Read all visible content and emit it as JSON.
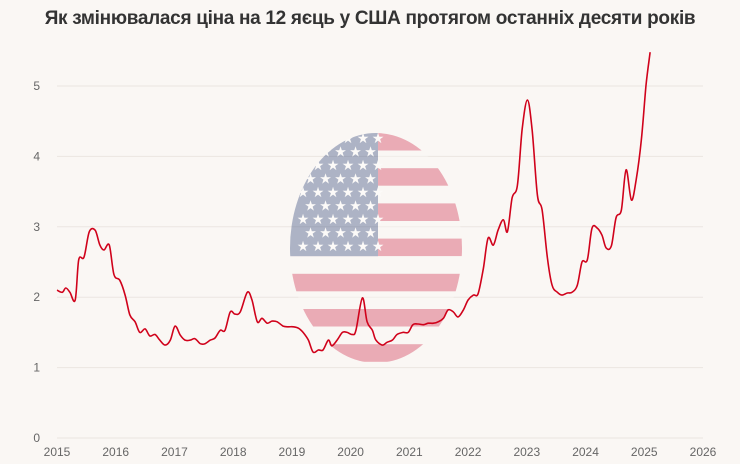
{
  "chart_data": {
    "type": "line",
    "title": "Як змінювалася ціна на 12 яєць у США протягом останніх десяти років",
    "xlabel": "",
    "ylabel": "",
    "xlim": [
      2015,
      2026
    ],
    "ylim": [
      0,
      5.5
    ],
    "x_ticks": [
      "2015",
      "2016",
      "2017",
      "2018",
      "2019",
      "2020",
      "2021",
      "2022",
      "2023",
      "2024",
      "2025",
      "2026"
    ],
    "y_ticks": [
      "0",
      "1",
      "2",
      "3",
      "4",
      "5"
    ],
    "grid": "horizontal",
    "line_color": "#d0021b",
    "background_image": "us-flag-egg",
    "points": [
      [
        2015.0,
        2.1
      ],
      [
        2015.09,
        2.07
      ],
      [
        2015.15,
        2.13
      ],
      [
        2015.22,
        2.07
      ],
      [
        2015.31,
        1.96
      ],
      [
        2015.37,
        2.53
      ],
      [
        2015.46,
        2.57
      ],
      [
        2015.55,
        2.93
      ],
      [
        2015.65,
        2.95
      ],
      [
        2015.73,
        2.74
      ],
      [
        2015.8,
        2.67
      ],
      [
        2015.89,
        2.74
      ],
      [
        2015.97,
        2.32
      ],
      [
        2016.07,
        2.24
      ],
      [
        2016.16,
        2.03
      ],
      [
        2016.24,
        1.75
      ],
      [
        2016.33,
        1.65
      ],
      [
        2016.41,
        1.5
      ],
      [
        2016.5,
        1.55
      ],
      [
        2016.58,
        1.45
      ],
      [
        2016.67,
        1.47
      ],
      [
        2016.75,
        1.39
      ],
      [
        2016.84,
        1.32
      ],
      [
        2016.93,
        1.39
      ],
      [
        2017.01,
        1.59
      ],
      [
        2017.1,
        1.46
      ],
      [
        2017.18,
        1.39
      ],
      [
        2017.27,
        1.39
      ],
      [
        2017.35,
        1.41
      ],
      [
        2017.44,
        1.34
      ],
      [
        2017.52,
        1.34
      ],
      [
        2017.61,
        1.39
      ],
      [
        2017.69,
        1.42
      ],
      [
        2017.78,
        1.53
      ],
      [
        2017.86,
        1.53
      ],
      [
        2017.95,
        1.79
      ],
      [
        2018.03,
        1.76
      ],
      [
        2018.12,
        1.79
      ],
      [
        2018.24,
        2.07
      ],
      [
        2018.32,
        1.96
      ],
      [
        2018.41,
        1.65
      ],
      [
        2018.49,
        1.7
      ],
      [
        2018.58,
        1.63
      ],
      [
        2018.66,
        1.66
      ],
      [
        2018.75,
        1.65
      ],
      [
        2018.85,
        1.59
      ],
      [
        2018.94,
        1.58
      ],
      [
        2019.02,
        1.58
      ],
      [
        2019.11,
        1.56
      ],
      [
        2019.19,
        1.5
      ],
      [
        2019.28,
        1.39
      ],
      [
        2019.36,
        1.22
      ],
      [
        2019.45,
        1.25
      ],
      [
        2019.53,
        1.25
      ],
      [
        2019.62,
        1.39
      ],
      [
        2019.68,
        1.31
      ],
      [
        2019.77,
        1.39
      ],
      [
        2019.86,
        1.5
      ],
      [
        2019.94,
        1.5
      ],
      [
        2020.03,
        1.47
      ],
      [
        2020.09,
        1.53
      ],
      [
        2020.2,
        1.99
      ],
      [
        2020.28,
        1.65
      ],
      [
        2020.37,
        1.53
      ],
      [
        2020.43,
        1.39
      ],
      [
        2020.54,
        1.32
      ],
      [
        2020.62,
        1.36
      ],
      [
        2020.71,
        1.39
      ],
      [
        2020.79,
        1.47
      ],
      [
        2020.89,
        1.5
      ],
      [
        2020.98,
        1.5
      ],
      [
        2021.06,
        1.61
      ],
      [
        2021.15,
        1.62
      ],
      [
        2021.24,
        1.61
      ],
      [
        2021.32,
        1.63
      ],
      [
        2021.41,
        1.63
      ],
      [
        2021.49,
        1.65
      ],
      [
        2021.58,
        1.7
      ],
      [
        2021.66,
        1.82
      ],
      [
        2021.75,
        1.79
      ],
      [
        2021.83,
        1.72
      ],
      [
        2021.92,
        1.82
      ],
      [
        2022.0,
        1.96
      ],
      [
        2022.09,
        2.03
      ],
      [
        2022.17,
        2.05
      ],
      [
        2022.26,
        2.41
      ],
      [
        2022.34,
        2.84
      ],
      [
        2022.43,
        2.74
      ],
      [
        2022.51,
        2.95
      ],
      [
        2022.6,
        3.1
      ],
      [
        2022.67,
        2.93
      ],
      [
        2022.75,
        3.41
      ],
      [
        2022.84,
        3.59
      ],
      [
        2022.92,
        4.38
      ],
      [
        2023.01,
        4.8
      ],
      [
        2023.09,
        4.38
      ],
      [
        2023.18,
        3.45
      ],
      [
        2023.26,
        3.24
      ],
      [
        2023.35,
        2.56
      ],
      [
        2023.43,
        2.17
      ],
      [
        2023.52,
        2.07
      ],
      [
        2023.6,
        2.03
      ],
      [
        2023.69,
        2.06
      ],
      [
        2023.77,
        2.07
      ],
      [
        2023.86,
        2.17
      ],
      [
        2023.94,
        2.5
      ],
      [
        2024.03,
        2.53
      ],
      [
        2024.11,
        2.98
      ],
      [
        2024.2,
        2.98
      ],
      [
        2024.28,
        2.88
      ],
      [
        2024.35,
        2.7
      ],
      [
        2024.44,
        2.73
      ],
      [
        2024.52,
        3.13
      ],
      [
        2024.61,
        3.24
      ],
      [
        2024.69,
        3.81
      ],
      [
        2024.78,
        3.38
      ],
      [
        2024.86,
        3.66
      ],
      [
        2024.95,
        4.23
      ],
      [
        2025.03,
        5.01
      ],
      [
        2025.1,
        5.48
      ]
    ]
  }
}
